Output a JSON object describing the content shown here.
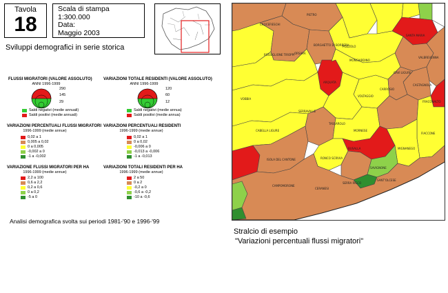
{
  "header": {
    "tavola_word": "Tavola",
    "tavola_number": "18",
    "scale_label": "Scala di stampa",
    "scale_value": "1:300.000",
    "date_label": "Data:",
    "date_value": "Maggio 2003",
    "subtitle": "Sviluppi demografici in serie storica"
  },
  "legends": {
    "flussi_assoluto": {
      "title": "FLUSSI MIGRATORI (VALORE ASSOLUTO)",
      "period": "ANNI 1996-1999",
      "values": [
        "290",
        "145",
        "29"
      ],
      "items": [
        {
          "label": "Saldi negativi (medie annuali)",
          "color": "#33cc33"
        },
        {
          "label": "Saldi positivi (medie annuali)",
          "color": "#e21a1a"
        }
      ]
    },
    "residenti_assoluto": {
      "title": "VARIAZIONI TOTALE RESIDENTI (VALORE ASSOLUTO)",
      "period": "ANNI 1996-1999",
      "values": [
        "120",
        "60",
        "12"
      ],
      "items": [
        {
          "label": "Saldi negativi (medie annua)",
          "color": "#33cc33"
        },
        {
          "label": "Saldi positivi (medie annua)",
          "color": "#e21a1a"
        }
      ]
    },
    "flussi_percentuali": {
      "title": "VARIAZIONI PERCENTUALI FLUSSI MIGRATORI",
      "period": "1996-1999 (medie annue)",
      "items": [
        {
          "label": "0,02  a  1",
          "color": "#e21a1a"
        },
        {
          "label": "0,005 a  0,02",
          "color": "#d88a55"
        },
        {
          "label": "0     a  0,005",
          "color": "#ffff33"
        },
        {
          "label": "-0,002 a  0",
          "color": "#8ed14a"
        },
        {
          "label": "-1    a -0,002",
          "color": "#2f8f2f"
        }
      ]
    },
    "residenti_percentuali": {
      "title": "VARIAZIONI PERCENTUALI RESIDENTI",
      "period": "1996-1999 (medie annue)",
      "items": [
        {
          "label": "0,02  a  1",
          "color": "#e21a1a"
        },
        {
          "label": "0     a  0,02",
          "color": "#d88a55"
        },
        {
          "label": "-0,006 a  0",
          "color": "#ffff33"
        },
        {
          "label": "-0,013 a -0,006",
          "color": "#8ed14a"
        },
        {
          "label": "-1    a -0,013",
          "color": "#2f8f2f"
        }
      ]
    },
    "flussi_ha": {
      "title": "VARIAZIONE FLUSSI MIGRATORI PER HA",
      "period": "1996-1999 (medie annue)",
      "items": [
        {
          "label": "2,2  a  100",
          "color": "#e21a1a"
        },
        {
          "label": "0,6  a  2,2",
          "color": "#d88a55"
        },
        {
          "label": "0,2  a  0,6",
          "color": "#ffff33"
        },
        {
          "label": "0    a  0,2",
          "color": "#8ed14a"
        },
        {
          "label": "-5   a  0",
          "color": "#2f8f2f"
        }
      ]
    },
    "residenti_ha": {
      "title": "VARIAZIONI TOTALI RESIDENTI PER HA",
      "period": "1996-1999 (medie annue)",
      "items": [
        {
          "label": "2    a 50",
          "color": "#e21a1a"
        },
        {
          "label": "0    a  2",
          "color": "#d88a55"
        },
        {
          "label": "-0,2 a  0",
          "color": "#ffff33"
        },
        {
          "label": "-0,6 a -0,2",
          "color": "#8ed14a"
        },
        {
          "label": "-10  a -0,6",
          "color": "#2f8f2f"
        }
      ]
    }
  },
  "note": "Analisi demografica svolta sui periodi 1981-'90 e 1996-'99",
  "caption": {
    "line1": "Stralcio di esempio",
    "line2": "\"Variazioni percentuali flussi migratori\""
  },
  "map": {
    "colors": {
      "red": "#e21a1a",
      "orange": "#d88a55",
      "yellow": "#ffff33",
      "lightgreen": "#8ed14a",
      "darkgreen": "#2f8f2f",
      "border": "#444444"
    },
    "labels": [
      "PIETRO",
      "ROSSIGLIONE TIROPPI",
      "ORSARA",
      "POZZOLO",
      "MONGIARDINO",
      "SANTA MARIA",
      "GAVI LIGURE",
      "CASTAGNOLA",
      "BORGHETTO DI BORBERA",
      "ARQUATA",
      "SERRAVALLE",
      "VOLTAGGIO",
      "CARROSIO",
      "FRACONALTO",
      "MORNESE",
      "TASSAROLO",
      "FIACCONE",
      "CABELLA LIGURE",
      "ISOLA DEL CANTONE",
      "RONCO SCRIVIA",
      "BUSALLA",
      "SAVIGNONE",
      "MIGNANEGO",
      "CAMPOMORONE",
      "CERANESI",
      "SERRA RICCO",
      "SANT'OLCESE",
      "VOBBIA",
      "CROCEFIESCHI",
      "VALBREVENNA"
    ]
  }
}
